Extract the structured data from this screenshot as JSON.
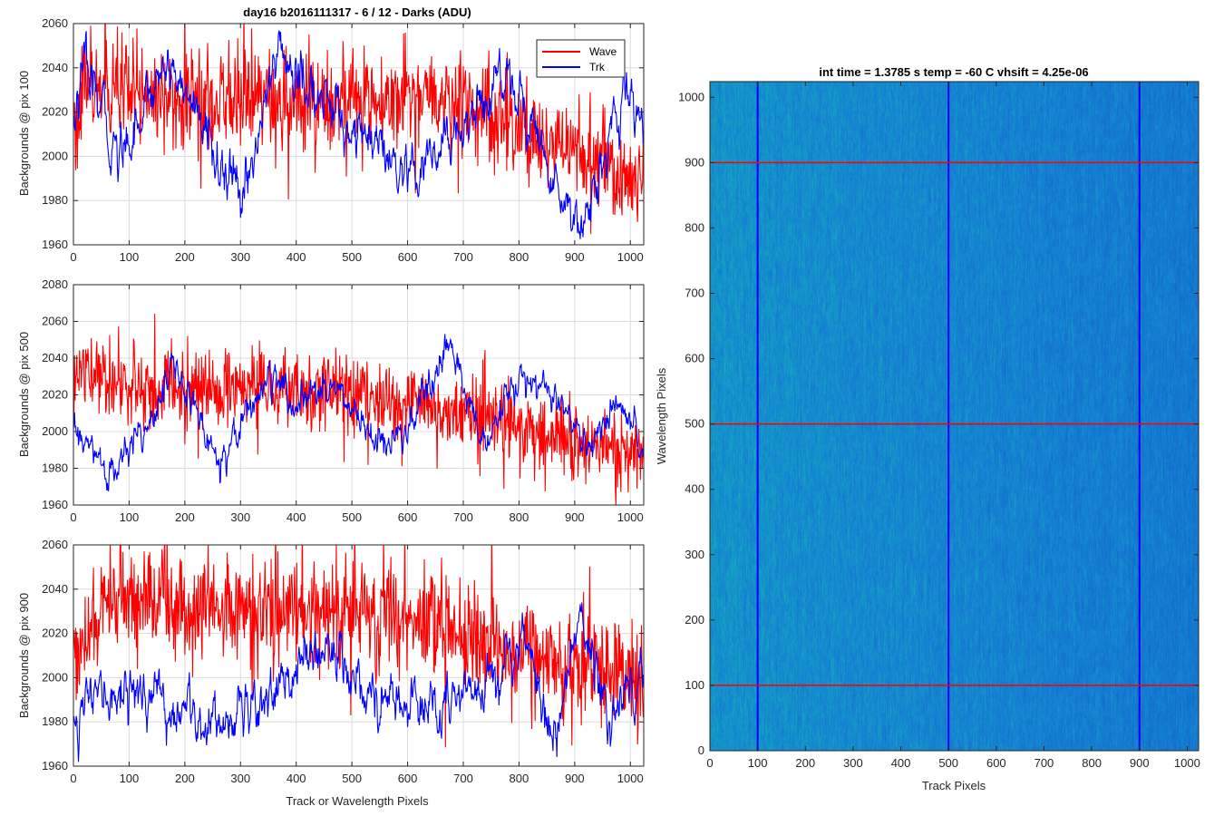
{
  "figure": {
    "title_left": "day16 b2016111317 - 6 / 12 - Darks (ADU)",
    "title_right": "int time = 1.3785 s    temp = -60 C    vhsift = 4.25e-06"
  },
  "legend": {
    "entries": [
      {
        "label": "Wave",
        "color": "#ff0000"
      },
      {
        "label": "Trk",
        "color": "#0000ff"
      }
    ],
    "placement": "top-right"
  },
  "chart_data": [
    {
      "type": "line",
      "title": "day16 b2016111317 - 6 / 12 - Darks (ADU)",
      "xlabel": "",
      "ylabel": "Backgrounds @ pix 100",
      "xlim": [
        0,
        1024
      ],
      "ylim": [
        1960,
        2060
      ],
      "xticks": [
        0,
        100,
        200,
        300,
        400,
        500,
        600,
        700,
        800,
        900,
        1000
      ],
      "yticks": [
        1960,
        1980,
        2000,
        2020,
        2040,
        2060
      ],
      "grid": true,
      "series": [
        {
          "name": "Wave",
          "color": "#ff0000",
          "mean": 2004,
          "noise": 11,
          "kind": "noise",
          "key_points": [
            [
              0,
              2025
            ],
            [
              25,
              2058
            ],
            [
              70,
              2050
            ],
            [
              400,
              2045
            ],
            [
              690,
              2050
            ],
            [
              1024,
              1972
            ]
          ]
        },
        {
          "name": "Trk",
          "color": "#0000ff",
          "mean": 2008,
          "noise": 5,
          "kind": "walk",
          "key_points": [
            [
              0,
              2015
            ],
            [
              20,
              2040
            ],
            [
              80,
              2000
            ],
            [
              170,
              2045
            ],
            [
              300,
              1978
            ],
            [
              370,
              2050
            ],
            [
              400,
              2035
            ],
            [
              540,
              2005
            ],
            [
              600,
              1985
            ],
            [
              720,
              2020
            ],
            [
              780,
              2040
            ],
            [
              860,
              1990
            ],
            [
              910,
              1970
            ],
            [
              1000,
              2030
            ],
            [
              1024,
              2010
            ]
          ]
        }
      ]
    },
    {
      "type": "line",
      "title": "",
      "xlabel": "",
      "ylabel": "Backgrounds @ pix 500",
      "xlim": [
        0,
        1024
      ],
      "ylim": [
        1960,
        2080
      ],
      "xticks": [
        0,
        100,
        200,
        300,
        400,
        500,
        600,
        700,
        800,
        900,
        1000
      ],
      "yticks": [
        1960,
        1980,
        2000,
        2020,
        2040,
        2060,
        2080
      ],
      "grid": true,
      "series": [
        {
          "name": "Wave",
          "color": "#ff0000",
          "mean": 2003,
          "noise": 10,
          "kind": "noise",
          "key_points": [
            [
              0,
              2010
            ],
            [
              5,
              2068
            ],
            [
              100,
              2045
            ],
            [
              500,
              2040
            ],
            [
              900,
              1990
            ],
            [
              1024,
              1975
            ]
          ]
        },
        {
          "name": "Trk",
          "color": "#0000ff",
          "mean": 2008,
          "noise": 4,
          "kind": "walk",
          "key_points": [
            [
              0,
              2000
            ],
            [
              70,
              1975
            ],
            [
              130,
              2005
            ],
            [
              180,
              2035
            ],
            [
              260,
              1985
            ],
            [
              350,
              2030
            ],
            [
              410,
              2010
            ],
            [
              450,
              2030
            ],
            [
              560,
              1990
            ],
            [
              600,
              2000
            ],
            [
              680,
              2045
            ],
            [
              740,
              1990
            ],
            [
              800,
              2030
            ],
            [
              860,
              2020
            ],
            [
              920,
              1990
            ],
            [
              980,
              2015
            ],
            [
              1024,
              1985
            ]
          ]
        }
      ]
    },
    {
      "type": "line",
      "title": "",
      "xlabel": "Track or Wavelength Pixels",
      "ylabel": "Backgrounds @ pix 900",
      "xlim": [
        0,
        1024
      ],
      "ylim": [
        1960,
        2060
      ],
      "xticks": [
        0,
        100,
        200,
        300,
        400,
        500,
        600,
        700,
        800,
        900,
        1000
      ],
      "yticks": [
        1960,
        1980,
        2000,
        2020,
        2040,
        2060
      ],
      "grid": true,
      "series": [
        {
          "name": "Wave",
          "color": "#ff0000",
          "mean": 2010,
          "noise": 12,
          "kind": "noise",
          "key_points": [
            [
              0,
              2010
            ],
            [
              70,
              2060
            ],
            [
              400,
              2050
            ],
            [
              560,
              2050
            ],
            [
              900,
              2000
            ],
            [
              1024,
              1985
            ]
          ]
        },
        {
          "name": "Trk",
          "color": "#0000ff",
          "mean": 1992,
          "noise": 5,
          "kind": "walk",
          "key_points": [
            [
              0,
              1985
            ],
            [
              100,
              1995
            ],
            [
              220,
              1980
            ],
            [
              300,
              1985
            ],
            [
              470,
              2015
            ],
            [
              540,
              1990
            ],
            [
              680,
              1985
            ],
            [
              810,
              2020
            ],
            [
              860,
              1970
            ],
            [
              910,
              2030
            ],
            [
              960,
              1980
            ],
            [
              1024,
              2010
            ]
          ]
        }
      ]
    },
    {
      "type": "heatmap",
      "title": "int time = 1.3785 s    temp = -60 C    vhsift = 4.25e-06",
      "xlabel": "Track Pixels",
      "ylabel": "Wavelength Pixels",
      "xlim": [
        0,
        1024
      ],
      "ylim": [
        0,
        1024
      ],
      "xticks": [
        0,
        100,
        200,
        300,
        400,
        500,
        600,
        700,
        800,
        900,
        1000
      ],
      "yticks": [
        0,
        100,
        200,
        300,
        400,
        500,
        600,
        700,
        800,
        900,
        1000
      ],
      "colormap": "parula",
      "marker_columns": [
        100,
        500,
        900
      ],
      "marker_column_color": "#0000ff",
      "marker_rows": [
        100,
        500,
        900
      ],
      "marker_row_color": "#ff0000"
    }
  ]
}
